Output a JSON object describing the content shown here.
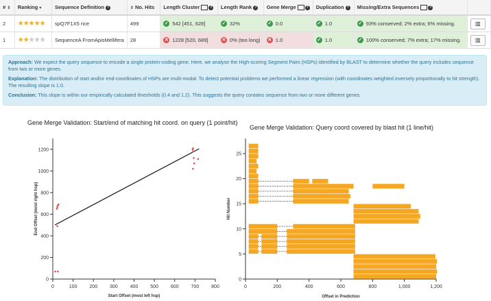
{
  "table": {
    "headers": {
      "num": "#",
      "ranking": "Ranking",
      "seqdef": "Sequence Definition",
      "nhits": "No. Hits",
      "lenclust": "Length Cluster",
      "lenrank": "Length Rank",
      "genemerge": "Gene Merge",
      "dup": "Duplication",
      "missing": "Missing/Extra Sequences"
    },
    "rows": [
      {
        "num": "2",
        "stars_on": 5,
        "seqdef": "spQ7F1X5 rice",
        "nhits": "499",
        "lenclust": "542 [451, 628]",
        "lenrank": "32%",
        "genemerge": "0.0",
        "dup": "1.0",
        "missing": "93% conserved; 2% extra; 6% missing."
      },
      {
        "num": "1",
        "stars_on": 2,
        "seqdef": "SequenceA FromApisMellifera",
        "nhits": "28",
        "lenclust": "1228 [520, 689]",
        "lenrank": "0% (too long)",
        "genemerge": "1.0",
        "dup": "1.0",
        "missing": "100% conserved; 7% extra; 17% missing."
      }
    ]
  },
  "explanation": {
    "approach_label": "Approach:",
    "approach": "We expect the query sequence to encode a single protein-coding gene. Here, we analyse the High-scoring Segment Pairs (HSPs) identified by BLAST to determine whether the query includes sequence from two or more genes.",
    "explanation_label": "Explanation:",
    "explanation": "The distribution of start and/or end-coordinates of HSPs are multi-modal. To detect potential problems we performed a linear regression (with coordinates weighted inversely proportionally to hit strength). The resulting slope is 1.0.",
    "conclusion_label": "Conclusion:",
    "conclusion": "This slope is within our empirically calculated thresholds (0.4 and 1.2). This suggests the query contains sequence from two or more different genes."
  },
  "chart_data": [
    {
      "type": "scatter",
      "title": "Gene Merge Validation: Start/end of matching hit coord. on query (1 point/hit)",
      "xlabel": "Start Offset (most left hsp)",
      "ylabel": "End Offset (most right hsp)",
      "xlim": [
        0,
        800
      ],
      "ylim": [
        0,
        1300
      ],
      "xticks": [
        0,
        100,
        200,
        300,
        400,
        500,
        600,
        700,
        800
      ],
      "yticks": [
        0,
        200,
        400,
        600,
        800,
        1000,
        1200
      ],
      "points": [
        {
          "x": 12,
          "y": 70
        },
        {
          "x": 25,
          "y": 70
        },
        {
          "x": 20,
          "y": 650
        },
        {
          "x": 22,
          "y": 665
        },
        {
          "x": 24,
          "y": 680
        },
        {
          "x": 28,
          "y": 690
        },
        {
          "x": 22,
          "y": 490
        },
        {
          "x": 688,
          "y": 1195
        },
        {
          "x": 690,
          "y": 1210
        },
        {
          "x": 692,
          "y": 1180
        },
        {
          "x": 694,
          "y": 1120
        },
        {
          "x": 696,
          "y": 1070
        },
        {
          "x": 690,
          "y": 1020
        },
        {
          "x": 715,
          "y": 1110
        }
      ],
      "regression": {
        "x": [
          10,
          720
        ],
        "y": [
          500,
          1205
        ]
      },
      "point_color": "#d9534f",
      "line_color": "#111111"
    },
    {
      "type": "bar",
      "title": "Gene Merge Validation: Query coord covered by blast hit (1 line/hit)",
      "xlabel": "Offset in Prediction",
      "ylabel": "Hit Number",
      "xlim": [
        0,
        1200
      ],
      "ylim": [
        0,
        28
      ],
      "xticks": [
        0,
        200,
        400,
        600,
        800,
        1000,
        1200
      ],
      "xtick_labels": [
        "0",
        "200",
        "400",
        "600",
        "800",
        "1,000",
        "1,200"
      ],
      "yticks": [
        0,
        5,
        10,
        15,
        20,
        25
      ],
      "bar_color": "#f5a623",
      "connector_color": "#333333",
      "hits": [
        {
          "n": 1,
          "segs": [
            [
              680,
              1200
            ]
          ]
        },
        {
          "n": 2,
          "segs": [
            [
              680,
              1205
            ]
          ]
        },
        {
          "n": 3,
          "segs": [
            [
              680,
              1200
            ]
          ]
        },
        {
          "n": 4,
          "segs": [
            [
              680,
              1205
            ]
          ]
        },
        {
          "n": 5,
          "segs": [
            [
              680,
              1195
            ]
          ]
        },
        {
          "n": 6,
          "segs": [
            [
              20,
              80
            ],
            [
              100,
              200
            ],
            [
              260,
              690
            ]
          ]
        },
        {
          "n": 7,
          "segs": [
            [
              20,
              80
            ],
            [
              100,
              200
            ],
            [
              260,
              690
            ]
          ]
        },
        {
          "n": 8,
          "segs": [
            [
              20,
              80
            ],
            [
              100,
              200
            ],
            [
              260,
              690
            ]
          ]
        },
        {
          "n": 9,
          "segs": [
            [
              20,
              80
            ],
            [
              100,
              200
            ],
            [
              260,
              690
            ]
          ]
        },
        {
          "n": 10,
          "segs": [
            [
              20,
              200
            ],
            [
              260,
              690
            ]
          ]
        },
        {
          "n": 11,
          "segs": [
            [
              20,
              200
            ],
            [
              300,
              690
            ]
          ]
        },
        {
          "n": 12,
          "segs": [
            [
              680,
              1090
            ]
          ]
        },
        {
          "n": 13,
          "segs": [
            [
              680,
              1100
            ]
          ]
        },
        {
          "n": 14,
          "segs": [
            [
              680,
              1090
            ]
          ]
        },
        {
          "n": 15,
          "segs": [
            [
              680,
              1040
            ]
          ]
        },
        {
          "n": 16,
          "segs": [
            [
              20,
              80
            ],
            [
              300,
              650
            ]
          ]
        },
        {
          "n": 17,
          "segs": [
            [
              20,
              80
            ],
            [
              300,
              660
            ]
          ]
        },
        {
          "n": 18,
          "segs": [
            [
              20,
              80
            ],
            [
              300,
              650
            ]
          ]
        },
        {
          "n": 19,
          "segs": [
            [
              20,
              80
            ],
            [
              300,
              680
            ]
          ]
        },
        {
          "n": 20,
          "segs": [
            [
              20,
              80
            ],
            [
              300,
              400
            ]
          ]
        },
        {
          "n": 21,
          "segs": [
            [
              20,
              80
            ]
          ]
        },
        {
          "n": 22,
          "segs": [
            [
              20,
              70
            ]
          ]
        },
        {
          "n": 23,
          "segs": [
            [
              20,
              80
            ]
          ]
        },
        {
          "n": 24,
          "segs": [
            [
              20,
              70
            ]
          ]
        },
        {
          "n": 25,
          "segs": [
            [
              20,
              80
            ]
          ]
        },
        {
          "n": 26,
          "segs": [
            [
              20,
              80
            ]
          ]
        },
        {
          "n": 27,
          "segs": [
            [
              20,
              80
            ]
          ]
        }
      ],
      "extra_bars": [
        {
          "n": 20,
          "segs": [
            [
              420,
              520
            ]
          ]
        },
        {
          "n": 18,
          "segs": [
            [
              460,
              510
            ]
          ]
        },
        {
          "n": 19,
          "segs": [
            [
              800,
              1000
            ]
          ]
        }
      ]
    }
  ]
}
